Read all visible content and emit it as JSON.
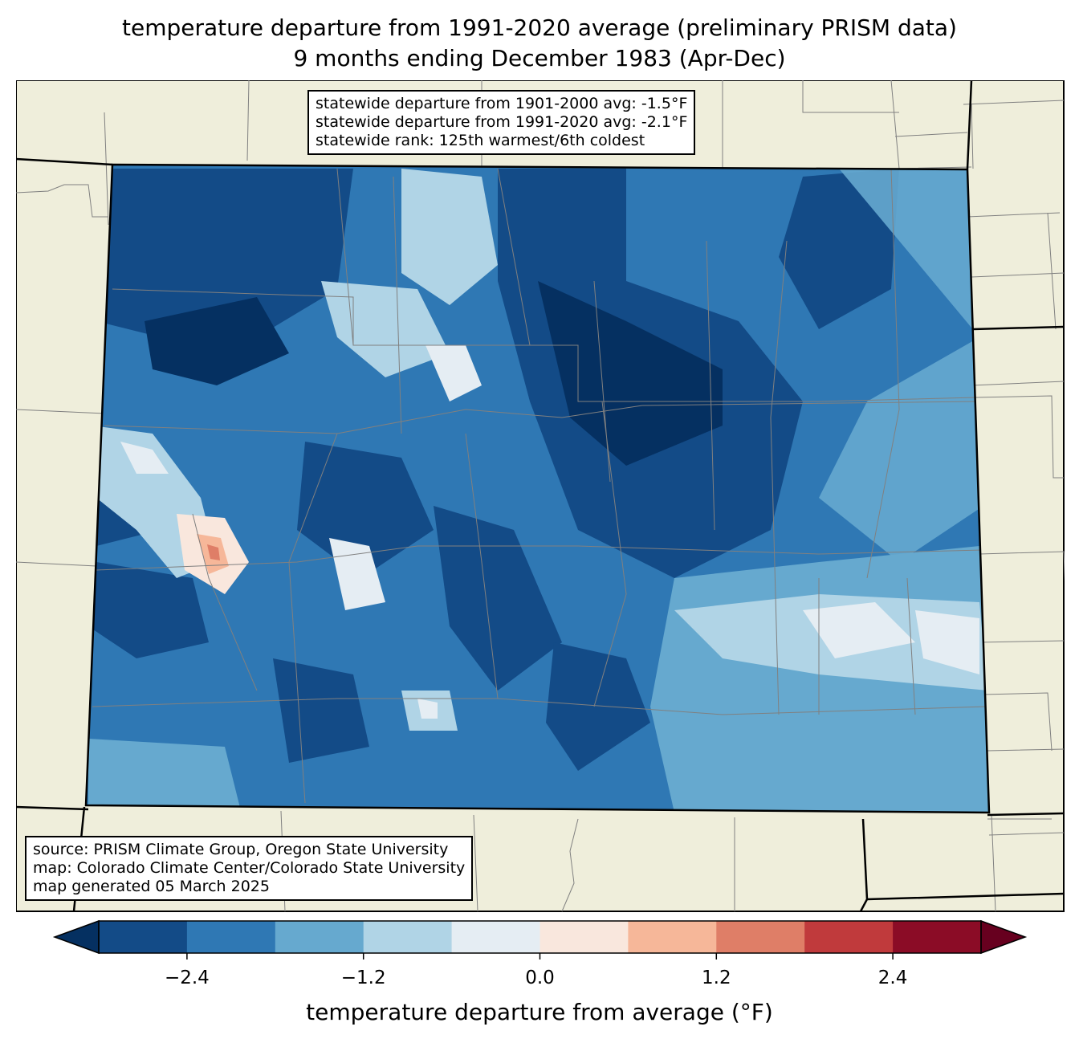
{
  "title": {
    "line1": "temperature departure from 1991-2020 average (preliminary PRISM data)",
    "line2": "9 months ending December 1983 (Apr-Dec)"
  },
  "stats": {
    "line1": "statewide departure from 1901-2000 avg: -1.5°F",
    "line2": "statewide departure from 1991-2020 avg: -2.1°F",
    "line3": "statewide rank: 125th warmest/6th coldest"
  },
  "credits": {
    "line1": "source: PRISM Climate Group, Oregon State University",
    "line2": "map: Colorado Climate Center/Colorado State University",
    "line3": "map generated 05 March 2025"
  },
  "colorbar": {
    "label": "temperature departure from average (°F)",
    "min": -3.0,
    "max": 3.0,
    "boundaries": [
      -3.0,
      -2.4,
      -1.8,
      -1.2,
      -0.6,
      0.0,
      0.6,
      1.2,
      1.8,
      2.4,
      3.0
    ],
    "colors": [
      "#134b87",
      "#2f78b4",
      "#66a9cf",
      "#b0d4e6",
      "#e5edf3",
      "#f9e7dd",
      "#f6b799",
      "#df7e67",
      "#c03a3c",
      "#8b0c26"
    ],
    "extend_low_color": "#053061",
    "extend_high_color": "#67001f",
    "ticks": [
      {
        "value": -2.4,
        "label": "−2.4"
      },
      {
        "value": -1.2,
        "label": "−1.2"
      },
      {
        "value": 0.0,
        "label": "0.0"
      },
      {
        "value": 1.2,
        "label": "1.2"
      },
      {
        "value": 2.4,
        "label": "2.4"
      }
    ]
  },
  "map_colors": {
    "land": "#efeedb",
    "border": "#000000",
    "county": "#808080"
  }
}
